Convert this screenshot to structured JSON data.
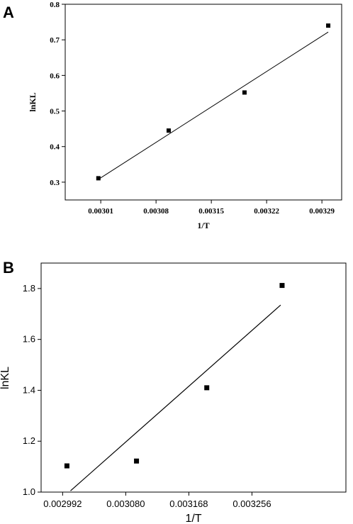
{
  "chart_data": [
    {
      "type": "scatter",
      "panel_label": "A",
      "xlabel": "1/T",
      "ylabel": "lnKL",
      "xlim": [
        0.002965,
        0.003315
      ],
      "ylim": [
        0.25,
        0.8
      ],
      "xticks": [
        0.00301,
        0.00308,
        0.00315,
        0.00322,
        0.00329
      ],
      "xtick_labels": [
        "0.00301",
        "0.00308",
        "0.00315",
        "0.00322",
        "0.00329"
      ],
      "yticks": [
        0.3,
        0.4,
        0.5,
        0.6,
        0.7,
        0.8
      ],
      "ytick_labels": [
        "0.3",
        "0.4",
        "0.5",
        "0.6",
        "0.7",
        "0.8"
      ],
      "points": [
        {
          "x": 0.003007,
          "y": 0.311
        },
        {
          "x": 0.003096,
          "y": 0.445
        },
        {
          "x": 0.003192,
          "y": 0.552
        },
        {
          "x": 0.003298,
          "y": 0.74
        }
      ],
      "fit": {
        "x": [
          0.003007,
          0.003298
        ],
        "y": [
          0.308,
          0.722
        ]
      },
      "grid": false
    },
    {
      "type": "scatter",
      "panel_label": "B",
      "xlabel": "1/T",
      "ylabel": "lnKL",
      "xlim": [
        0.002962,
        0.003387
      ],
      "ylim": [
        1.0,
        1.9
      ],
      "xticks": [
        0.002992,
        0.00308,
        0.003168,
        0.003256
      ],
      "xtick_labels": [
        "0.002992",
        "0.003080",
        "0.003168",
        "0.003256"
      ],
      "yticks": [
        1.0,
        1.2,
        1.4,
        1.6,
        1.8
      ],
      "ytick_labels": [
        "1.0",
        "1.2",
        "1.4",
        "1.6",
        "1.8"
      ],
      "points": [
        {
          "x": 0.002998,
          "y": 1.103
        },
        {
          "x": 0.003095,
          "y": 1.122
        },
        {
          "x": 0.003193,
          "y": 1.41
        },
        {
          "x": 0.003298,
          "y": 1.812
        }
      ],
      "fit": {
        "x": [
          0.003003,
          0.003296
        ],
        "y": [
          1.005,
          1.735
        ]
      },
      "grid": false
    }
  ]
}
